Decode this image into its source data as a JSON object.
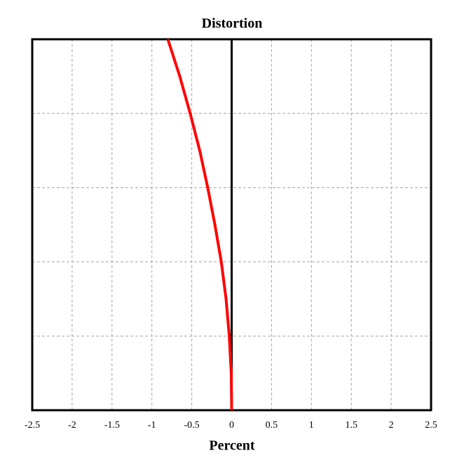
{
  "chart_data": {
    "type": "line",
    "title": "Distortion",
    "x_label": "Percent",
    "x": [
      0,
      -0.005,
      -0.03,
      -0.07,
      -0.13,
      -0.21,
      -0.3,
      -0.4,
      -0.52,
      -0.65,
      -0.8
    ],
    "values": [
      0,
      0.1,
      0.2,
      0.3,
      0.4,
      0.5,
      0.6,
      0.7,
      0.8,
      0.9,
      1.0
    ],
    "color": "#ff0000",
    "xlim": [
      -2.5,
      2.5
    ],
    "xticks": [
      -2.5,
      -2,
      -1.5,
      -1,
      -0.5,
      0,
      0.5,
      1,
      1.5,
      2,
      2.5
    ],
    "ylim": [
      0,
      1
    ],
    "yticks": [
      0,
      0.2,
      0.4,
      0.6,
      0.8,
      1
    ],
    "grid": true
  }
}
